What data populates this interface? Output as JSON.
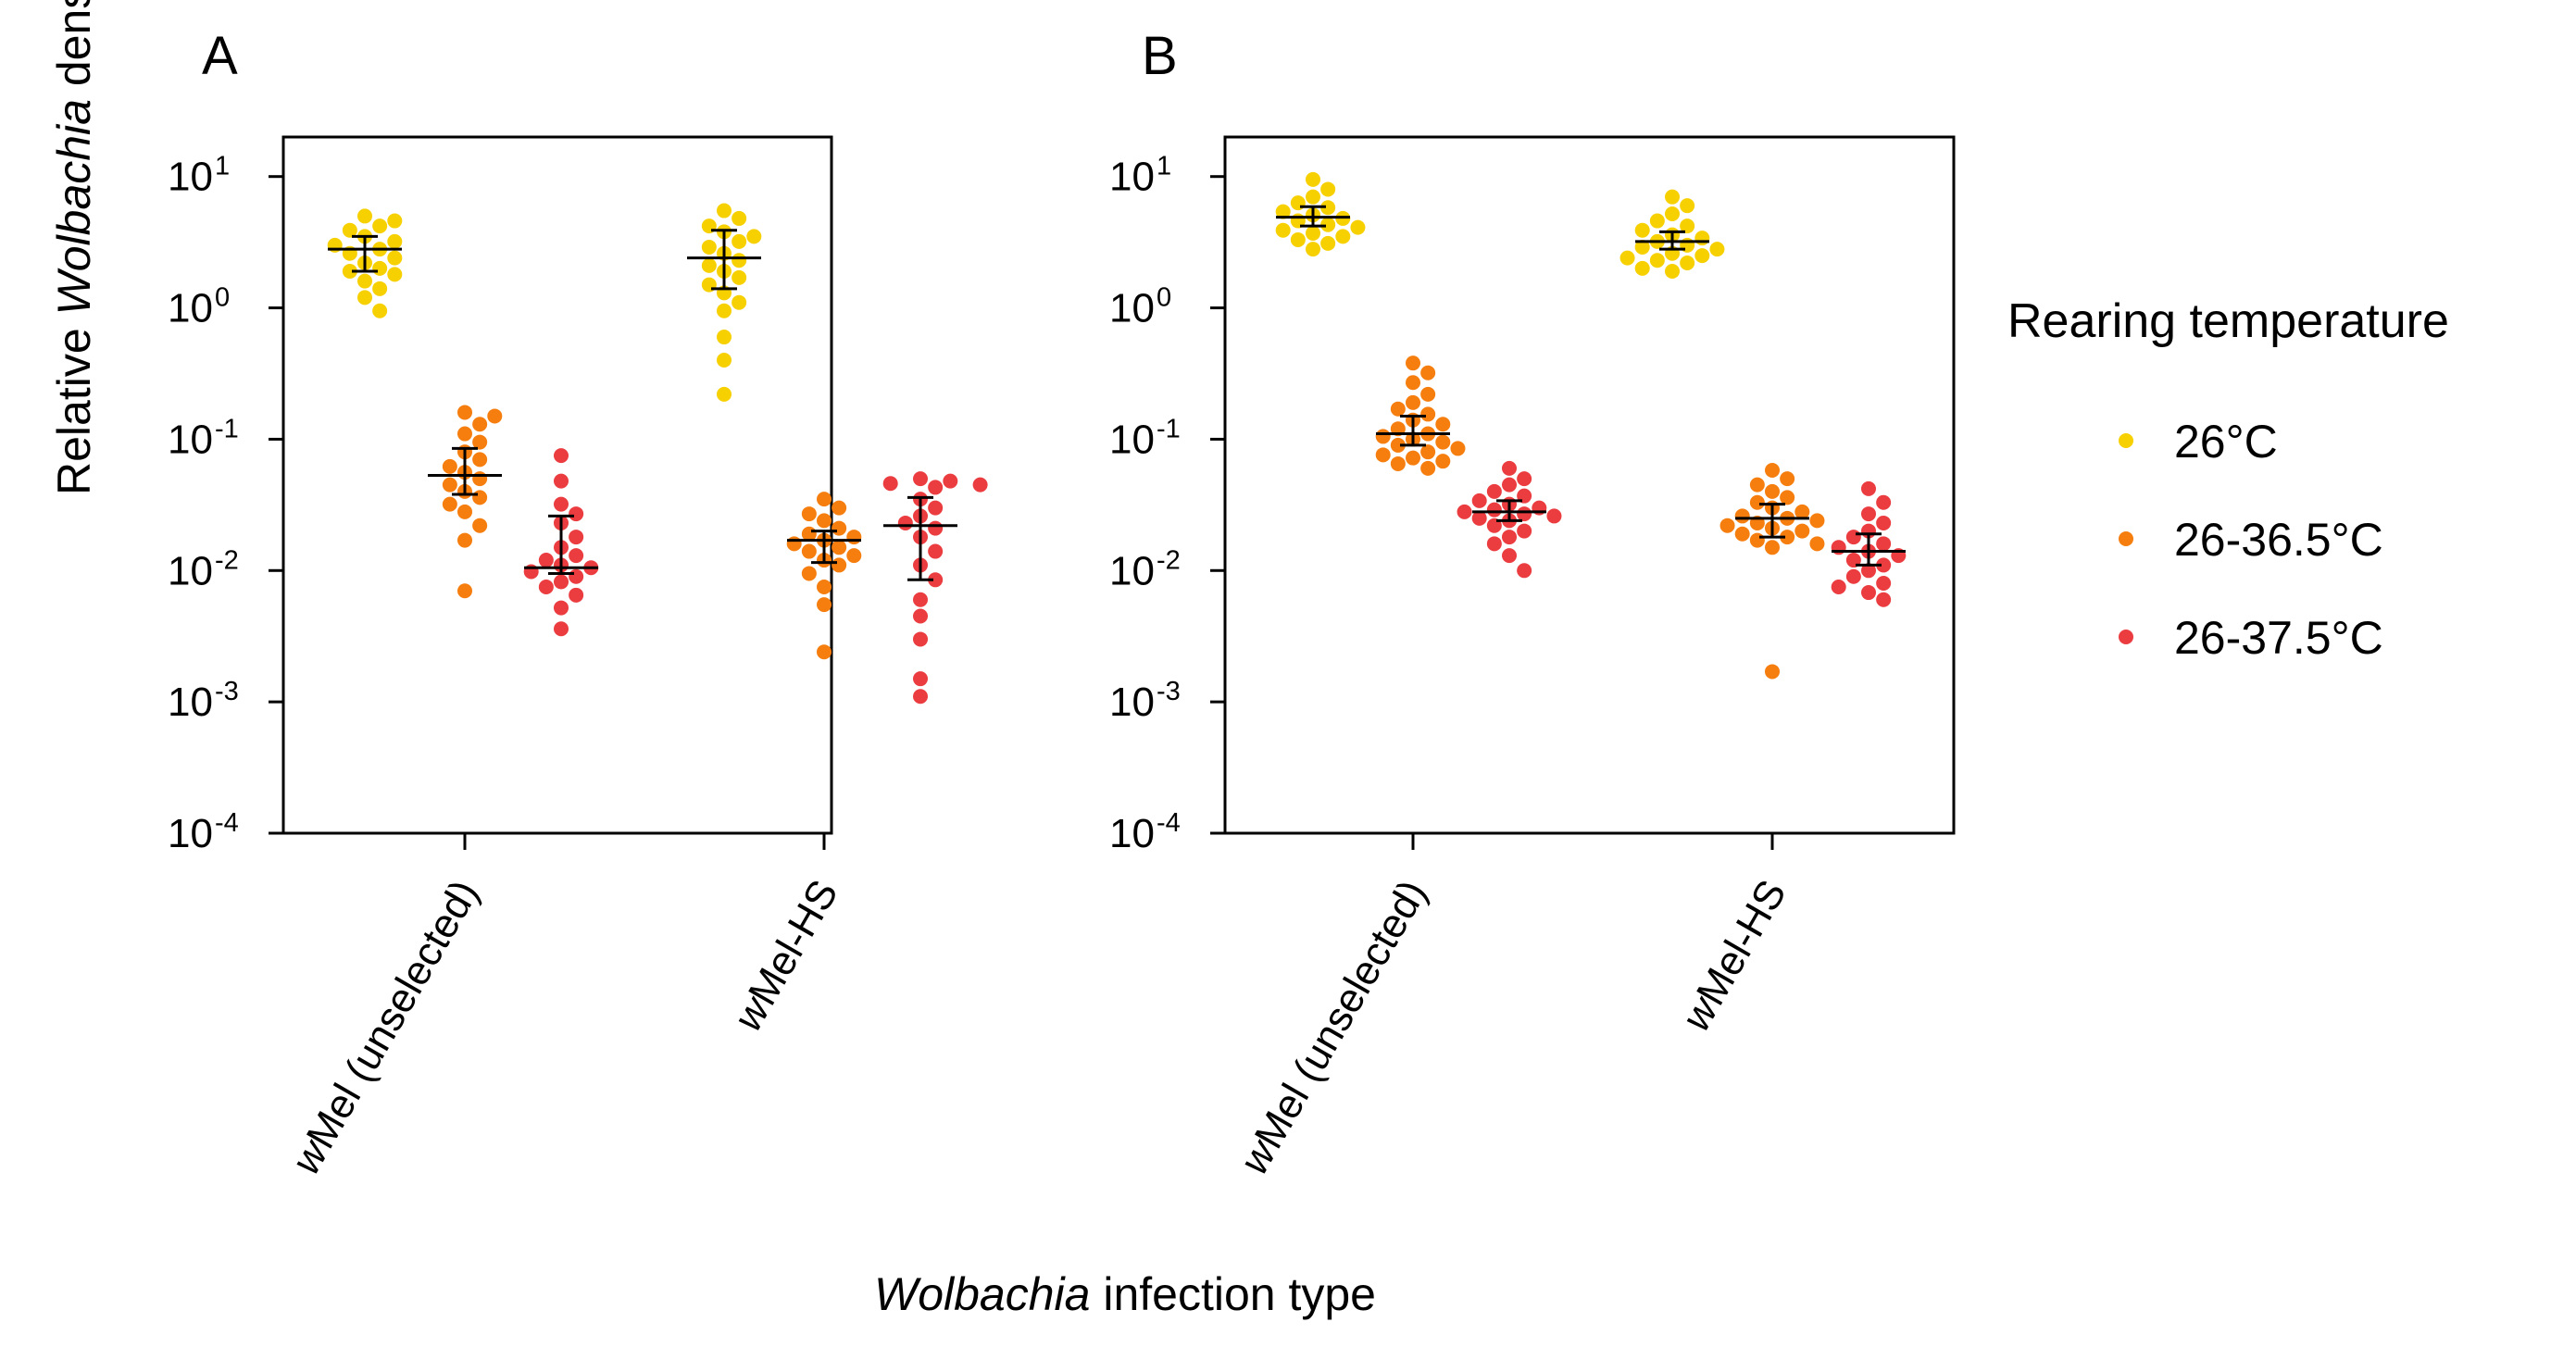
{
  "chart_data": [
    {
      "type": "scatter",
      "panel": "A",
      "ylabel": {
        "pre": "Relative ",
        "ital": "Wolbachia",
        "post": " density"
      },
      "yscale": "log10",
      "ylim": [
        0.0001,
        20
      ],
      "categories": [
        {
          "name": "wMel (unselected)",
          "pre": "w",
          "rest": "Mel (unselected)"
        },
        {
          "name": "wMel-HS",
          "pre": "w",
          "rest": "Mel-HS"
        }
      ],
      "groups": [
        {
          "category": "wMel (unselected)",
          "series": "26°C",
          "median": 2.8,
          "ci": [
            1.9,
            3.5
          ],
          "values": [
            5.0,
            4.6,
            4.2,
            3.9,
            3.5,
            3.2,
            3.0,
            2.8,
            2.6,
            2.4,
            2.2,
            2.0,
            1.9,
            1.8,
            1.6,
            1.4,
            1.2,
            0.95
          ]
        },
        {
          "category": "wMel (unselected)",
          "series": "26-36.5°C",
          "median": 0.053,
          "ci": [
            0.038,
            0.085
          ],
          "values": [
            0.16,
            0.15,
            0.13,
            0.11,
            0.095,
            0.08,
            0.07,
            0.062,
            0.056,
            0.05,
            0.045,
            0.04,
            0.036,
            0.032,
            0.028,
            0.022,
            0.017,
            0.007
          ]
        },
        {
          "category": "wMel (unselected)",
          "series": "26-37.5°C",
          "median": 0.0105,
          "ci": [
            0.0095,
            0.026
          ],
          "values": [
            0.075,
            0.048,
            0.032,
            0.027,
            0.023,
            0.018,
            0.015,
            0.013,
            0.012,
            0.011,
            0.0105,
            0.0098,
            0.009,
            0.0082,
            0.0075,
            0.0065,
            0.0052,
            0.0036
          ]
        },
        {
          "category": "wMel-HS",
          "series": "26°C",
          "median": 2.4,
          "ci": [
            1.4,
            3.9
          ],
          "values": [
            5.5,
            4.8,
            4.2,
            3.8,
            3.5,
            3.2,
            2.9,
            2.6,
            2.3,
            2.1,
            1.9,
            1.7,
            1.5,
            1.3,
            1.1,
            0.95,
            0.6,
            0.4,
            0.22
          ]
        },
        {
          "category": "wMel-HS",
          "series": "26-36.5°C",
          "median": 0.017,
          "ci": [
            0.0115,
            0.02
          ],
          "values": [
            0.035,
            0.03,
            0.027,
            0.024,
            0.021,
            0.019,
            0.018,
            0.017,
            0.016,
            0.015,
            0.014,
            0.013,
            0.012,
            0.011,
            0.0095,
            0.0075,
            0.0055,
            0.0024
          ]
        },
        {
          "category": "wMel-HS",
          "series": "26-37.5°C",
          "median": 0.022,
          "ci": [
            0.0085,
            0.036
          ],
          "values": [
            0.05,
            0.048,
            0.046,
            0.045,
            0.043,
            0.035,
            0.03,
            0.026,
            0.023,
            0.021,
            0.018,
            0.014,
            0.011,
            0.0085,
            0.006,
            0.0045,
            0.003,
            0.0015,
            0.0011
          ]
        }
      ]
    },
    {
      "type": "scatter",
      "panel": "B",
      "yscale": "log10",
      "ylim": [
        0.0001,
        20
      ],
      "categories": [
        {
          "name": "wMel (unselected)",
          "pre": "w",
          "rest": "Mel (unselected)"
        },
        {
          "name": "wMel-HS",
          "pre": "w",
          "rest": "Mel-HS"
        }
      ],
      "groups": [
        {
          "category": "wMel (unselected)",
          "series": "26°C",
          "median": 4.9,
          "ci": [
            4.2,
            5.9
          ],
          "values": [
            9.5,
            8.0,
            7.0,
            6.3,
            5.8,
            5.4,
            5.1,
            4.8,
            4.6,
            4.3,
            4.1,
            3.9,
            3.7,
            3.5,
            3.3,
            3.1,
            2.8
          ]
        },
        {
          "category": "wMel (unselected)",
          "series": "26-36.5°C",
          "median": 0.11,
          "ci": [
            0.09,
            0.15
          ],
          "values": [
            0.38,
            0.32,
            0.27,
            0.22,
            0.19,
            0.17,
            0.155,
            0.14,
            0.13,
            0.12,
            0.11,
            0.105,
            0.1,
            0.095,
            0.09,
            0.085,
            0.08,
            0.076,
            0.072,
            0.068,
            0.065,
            0.06
          ]
        },
        {
          "category": "wMel (unselected)",
          "series": "26-37.5°C",
          "median": 0.028,
          "ci": [
            0.024,
            0.034
          ],
          "values": [
            0.06,
            0.05,
            0.045,
            0.04,
            0.037,
            0.034,
            0.032,
            0.03,
            0.029,
            0.028,
            0.027,
            0.026,
            0.025,
            0.024,
            0.022,
            0.02,
            0.018,
            0.016,
            0.013,
            0.01
          ]
        },
        {
          "category": "wMel-HS",
          "series": "26°C",
          "median": 3.2,
          "ci": [
            2.8,
            3.8
          ],
          "values": [
            7.0,
            6.0,
            5.2,
            4.6,
            4.2,
            3.9,
            3.6,
            3.4,
            3.2,
            3.0,
            2.9,
            2.8,
            2.6,
            2.5,
            2.4,
            2.3,
            2.2,
            2.0,
            1.9
          ]
        },
        {
          "category": "wMel-HS",
          "series": "26-36.5°C",
          "median": 0.025,
          "ci": [
            0.018,
            0.032
          ],
          "values": [
            0.058,
            0.05,
            0.045,
            0.04,
            0.036,
            0.033,
            0.03,
            0.028,
            0.026,
            0.025,
            0.024,
            0.023,
            0.022,
            0.021,
            0.02,
            0.019,
            0.018,
            0.017,
            0.016,
            0.015,
            0.0017
          ]
        },
        {
          "category": "wMel-HS",
          "series": "26-37.5°C",
          "median": 0.014,
          "ci": [
            0.011,
            0.019
          ],
          "values": [
            0.042,
            0.033,
            0.027,
            0.023,
            0.02,
            0.018,
            0.016,
            0.015,
            0.014,
            0.013,
            0.012,
            0.011,
            0.01,
            0.009,
            0.008,
            0.0075,
            0.0068,
            0.006
          ]
        }
      ]
    }
  ],
  "series_colors": {
    "26°C": "#f7d000",
    "26-36.5°C": "#f57e0f",
    "26-37.5°C": "#eb3c40"
  },
  "ytick_labels": [
    {
      "base": "10",
      "exp": "1",
      "value": 10
    },
    {
      "base": "10",
      "exp": "0",
      "value": 1
    },
    {
      "base": "10",
      "exp": "-1",
      "value": 0.1
    },
    {
      "base": "10",
      "exp": "-2",
      "value": 0.01
    },
    {
      "base": "10",
      "exp": "-3",
      "value": 0.001
    },
    {
      "base": "10",
      "exp": "-4",
      "value": 0.0001
    }
  ],
  "xlabel": {
    "ital": "Wolbachia",
    "rest": " infection type"
  },
  "legend": {
    "title": "Rearing temperature",
    "items": [
      {
        "label": "26°C",
        "color": "#f7d000"
      },
      {
        "label": "26-36.5°C",
        "color": "#f57e0f"
      },
      {
        "label": "26-37.5°C",
        "color": "#eb3c40"
      }
    ]
  }
}
